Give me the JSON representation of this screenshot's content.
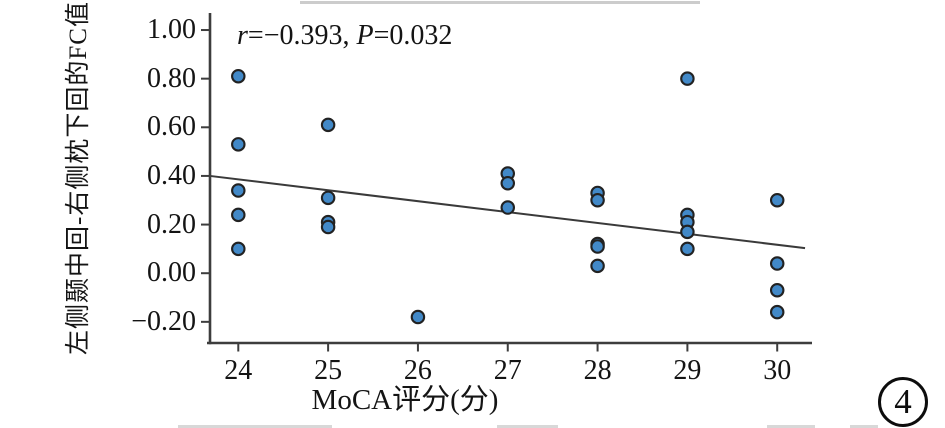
{
  "figure": {
    "annotation": {
      "r_var": "r",
      "r_rest": "=−0.393, ",
      "p_var": "P",
      "p_rest": "=0.032"
    },
    "figure_number": "4"
  },
  "chart_data": {
    "type": "scatter",
    "title": "",
    "xlabel": "MoCA评分(分)",
    "ylabel": "左侧颞中回-右侧枕下回的FC值",
    "annotation": "r=−0.393, P=0.032",
    "legend": null,
    "grid": false,
    "xlim": [
      23.685,
      30.365
    ],
    "ylim": [
      -0.287,
      1.07
    ],
    "x_ticks": [
      24,
      25,
      26,
      27,
      28,
      29,
      30
    ],
    "y_ticks": [
      1.0,
      0.8,
      0.6,
      0.4,
      0.2,
      0.0,
      -0.2
    ],
    "y_tick_labels": [
      "1.00",
      "0.80",
      "0.60",
      "0.40",
      "0.20",
      "0.00",
      "−0.20"
    ],
    "points": [
      [
        24,
        0.81
      ],
      [
        24,
        0.53
      ],
      [
        24,
        0.34
      ],
      [
        24,
        0.24
      ],
      [
        24,
        0.1
      ],
      [
        25,
        0.61
      ],
      [
        25,
        0.31
      ],
      [
        25,
        0.21
      ],
      [
        25,
        0.19
      ],
      [
        26,
        -0.18
      ],
      [
        27,
        0.41
      ],
      [
        27,
        0.37
      ],
      [
        27,
        0.27
      ],
      [
        28,
        0.33
      ],
      [
        28,
        0.3
      ],
      [
        28,
        0.12
      ],
      [
        28,
        0.11
      ],
      [
        28,
        0.03
      ],
      [
        29,
        0.8
      ],
      [
        29,
        0.24
      ],
      [
        29,
        0.21
      ],
      [
        29,
        0.17
      ],
      [
        29,
        0.1
      ],
      [
        30,
        0.3
      ],
      [
        30,
        0.04
      ],
      [
        30,
        -0.07
      ],
      [
        30,
        -0.16
      ]
    ],
    "trendline": {
      "x1": 23.685,
      "y1": 0.4,
      "x2": 30.31,
      "y2": 0.103
    },
    "point_fill": "#4289c8",
    "point_stroke": "#222222",
    "line_color": "#3a3a3a",
    "axis_color": "#3d3d3d"
  }
}
